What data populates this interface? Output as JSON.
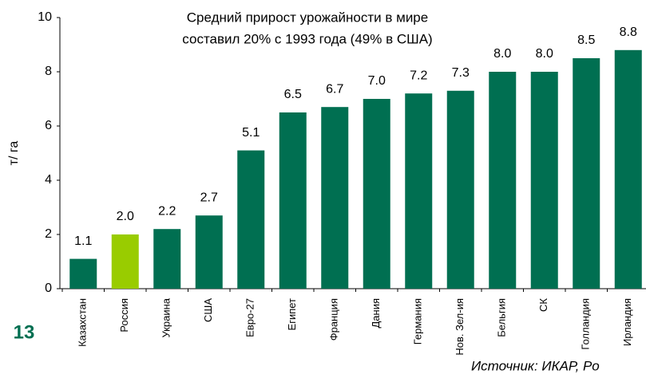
{
  "chart_data": {
    "type": "bar",
    "annotation": [
      "Средний прирост урожайности в мире",
      "составил 20% с 1993 года (49% в США)"
    ],
    "ylabel": "т/ га",
    "page_number": "13",
    "source": "Источник: ИКАР, Ро",
    "categories": [
      "Казахстан",
      "Россия",
      "Украина",
      "США",
      "Евро-27",
      "Египет",
      "Франция",
      "Дания",
      "Германия",
      "Нов. Зел-ия",
      "Бельгия",
      "СК",
      "Голландия",
      "Ирландия"
    ],
    "values": [
      1.1,
      2.0,
      2.2,
      2.7,
      5.1,
      6.5,
      6.7,
      7.0,
      7.2,
      7.3,
      8.0,
      8.0,
      8.5,
      8.8
    ],
    "value_labels": [
      "1.1",
      "2.0",
      "2.2",
      "2.7",
      "5.1",
      "6.5",
      "6.7",
      "7.0",
      "7.2",
      "7.3",
      "8.0",
      "8.0",
      "8.5",
      "8.8"
    ],
    "colors": [
      "#006f51",
      "#99cc00",
      "#006f51",
      "#006f51",
      "#006f51",
      "#006f51",
      "#006f51",
      "#006f51",
      "#006f51",
      "#006f51",
      "#006f51",
      "#006f51",
      "#006f51",
      "#006f51"
    ],
    "ylim": [
      0,
      10
    ],
    "yticks": [
      0,
      2,
      4,
      6,
      8,
      10
    ],
    "grid": false
  }
}
